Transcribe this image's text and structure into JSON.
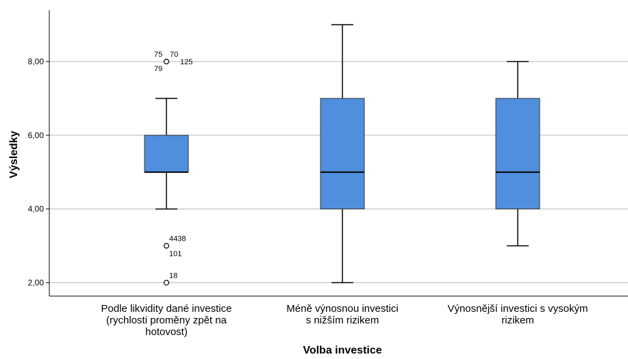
{
  "chart_data": {
    "type": "boxplot",
    "xlabel": "Volba investice",
    "ylabel": "Výsledky",
    "ylim": [
      1.6,
      9.4
    ],
    "yticks": [
      2,
      4,
      6,
      8
    ],
    "ytick_labels": [
      "2,00",
      "4,00",
      "6,00",
      "8,00"
    ],
    "grid": true,
    "box_color": "#4f8fde",
    "categories": [
      {
        "lines": [
          "Podle likvidity dané investice",
          "(rychlosti proměny zpět na",
          "hotovost)"
        ],
        "min": 4,
        "q1": 5,
        "median": 5,
        "q3": 6,
        "max": 7,
        "outliers": [
          {
            "value": 8,
            "labels": [
              "75",
              "70",
              "79",
              "125"
            ]
          },
          {
            "value": 3,
            "labels": [
              "4438",
              "101"
            ]
          },
          {
            "value": 2,
            "labels": [
              "18"
            ]
          }
        ]
      },
      {
        "lines": [
          "Méně výnosnou investici",
          "s nižším rizikem"
        ],
        "min": 2,
        "q1": 4,
        "median": 5,
        "q3": 7,
        "max": 9,
        "outliers": []
      },
      {
        "lines": [
          "Výnosnější investici s vysokým",
          "rizikem"
        ],
        "min": 3,
        "q1": 4,
        "median": 5,
        "q3": 7,
        "max": 8,
        "outliers": []
      }
    ]
  }
}
